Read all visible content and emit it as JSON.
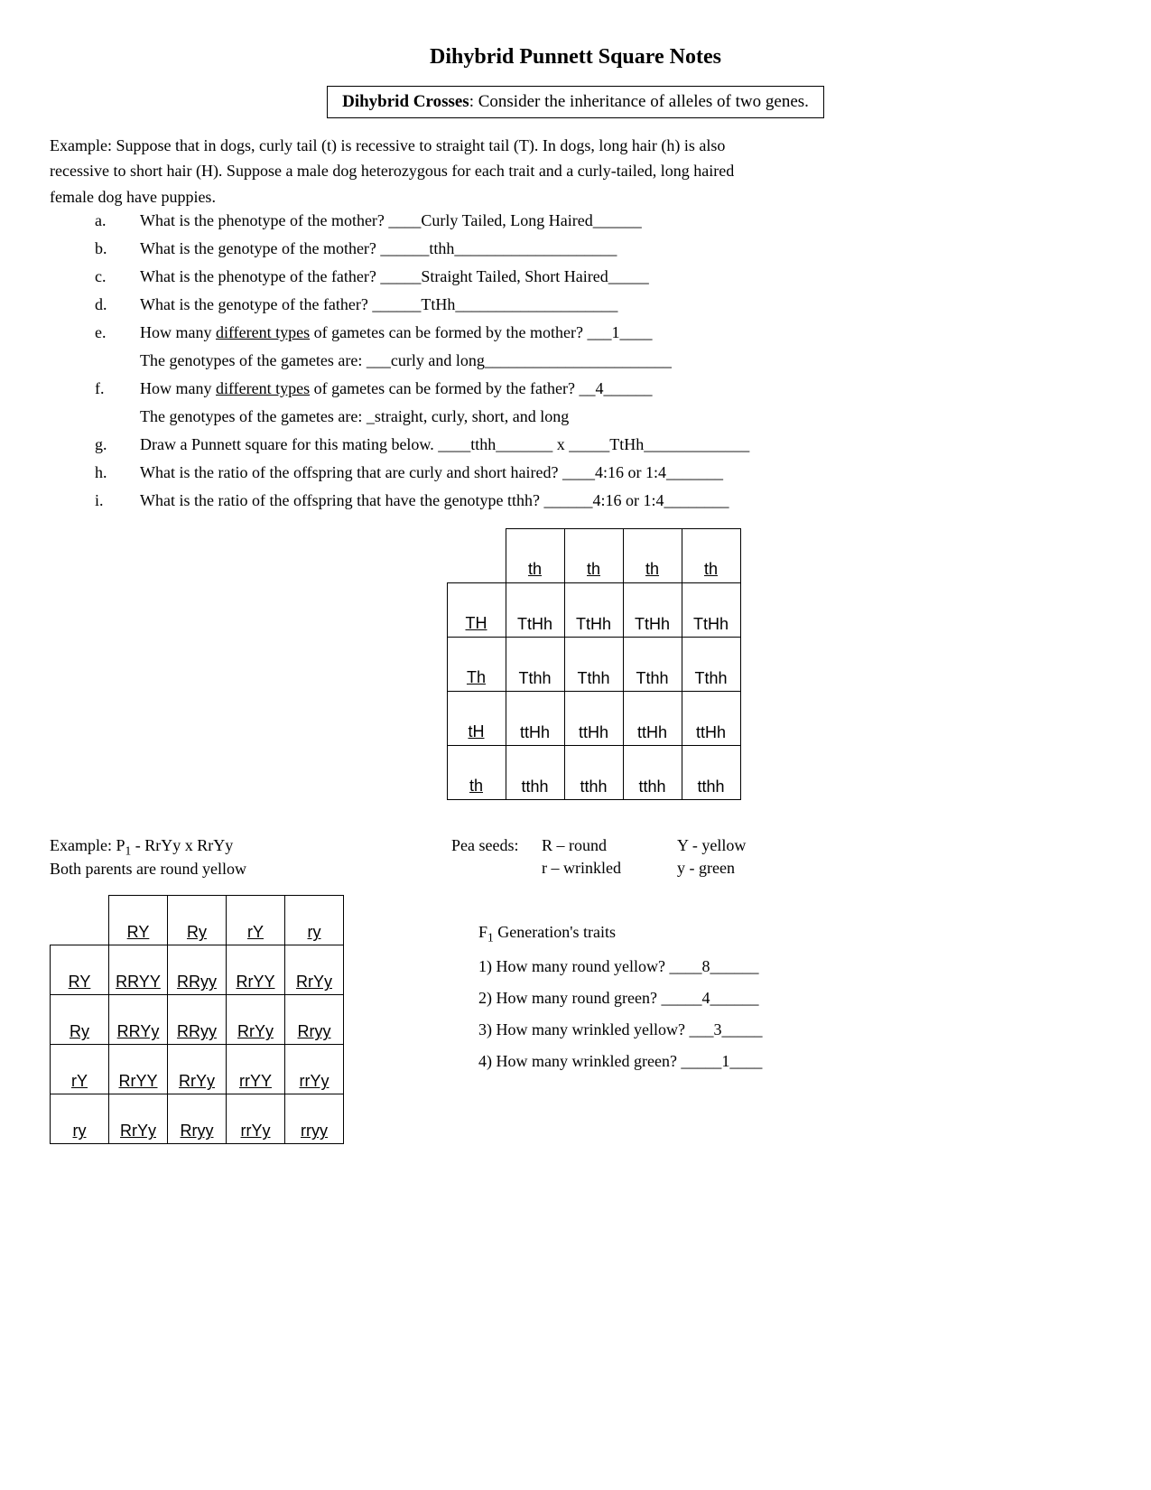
{
  "title": "Dihybrid Punnett Square Notes",
  "box_bold": "Dihybrid Crosses",
  "box_rest": ":  Consider the inheritance of alleles of two genes.",
  "example_intro_l1": "Example:  Suppose that in dogs, curly tail (t) is recessive to straight tail (T).  In dogs, long hair (h) is also",
  "example_intro_l2": "recessive to short hair (H).  Suppose a male dog heterozygous for each trait and a curly-tailed, long haired",
  "example_intro_l3": "female dog have puppies.",
  "q": {
    "a": {
      "letter": "a.",
      "text": "What is the phenotype of the mother?  ____Curly Tailed, Long Haired______"
    },
    "b": {
      "letter": "b.",
      "text": "What is the genotype of the mother?  ______tthh____________________"
    },
    "c": {
      "letter": "c.",
      "text": "What is the phenotype of the father? _____Straight Tailed, Short Haired_____"
    },
    "d": {
      "letter": "d.",
      "text": "What is the genotype of the father?  ______TtHh____________________"
    },
    "e": {
      "letter": "e.",
      "pre": "How many ",
      "u": "different types",
      "post": " of gametes can be formed by the mother? ___1____"
    },
    "e_sub": "The genotypes of the gametes are: ___curly and long_______________________",
    "f": {
      "letter": "f.",
      "pre": "How many ",
      "u": "different types",
      "post": " of gametes can be formed by the father? __4______"
    },
    "f_sub": "The genotypes of the gametes are: _straight, curly, short, and long",
    "g": {
      "letter": "g.",
      "text": "Draw a Punnett square for this mating below.  ____tthh_______   x   _____TtHh_____________"
    },
    "h": {
      "letter": "h.",
      "text": "What is the ratio of the offspring that are curly and short haired?  ____4:16 or 1:4_______"
    },
    "i": {
      "letter": "i.",
      "text": "What is the ratio of the offspring that have the genotype tthh?  ______4:16 or 1:4________"
    }
  },
  "punnett1": {
    "col_headers": [
      "th",
      "th",
      "th",
      "th"
    ],
    "row_headers": [
      "TH",
      "Th",
      "tH",
      "th"
    ],
    "rows": [
      [
        "TtHh",
        "TtHh",
        "TtHh",
        "TtHh"
      ],
      [
        "Tthh",
        "Tthh",
        "Tthh",
        "Tthh"
      ],
      [
        "ttHh",
        "ttHh",
        "ttHh",
        "ttHh"
      ],
      [
        "tthh",
        "tthh",
        "tthh",
        "tthh"
      ]
    ]
  },
  "example2": {
    "line1_a": "Example:      P",
    "line1_sub": "1",
    "line1_b": "  - RrYy x RrYy",
    "line2": "Both parents are round yellow",
    "legend_label": "Pea seeds:",
    "legend_r1c1": "R – round",
    "legend_r1c2": "Y - yellow",
    "legend_r2c1": "r – wrinkled",
    "legend_r2c2": "y - green"
  },
  "punnett2": {
    "col_headers": [
      "RY",
      "Ry",
      "rY",
      "ry"
    ],
    "row_headers": [
      "RY",
      "Ry",
      "rY",
      "ry"
    ],
    "rows": [
      [
        "RRYY",
        "RRyy",
        "RrYY",
        "RrYy"
      ],
      [
        "RRYy",
        "RRyy",
        "RrYy",
        "Rryy"
      ],
      [
        "RrYY",
        "RrYy",
        "rrYY",
        "rrYy"
      ],
      [
        "RrYy",
        "Rryy",
        "rrYy",
        "rryy"
      ]
    ]
  },
  "f1": {
    "title_a": "F",
    "title_sub": "1",
    "title_b": " Generation's traits",
    "q1": "1) How many round yellow? ____8______",
    "q2": "2) How many round green? _____4______",
    "q3": "3) How many wrinkled yellow? ___3_____",
    "q4": "4) How many wrinkled green? _____1____"
  }
}
